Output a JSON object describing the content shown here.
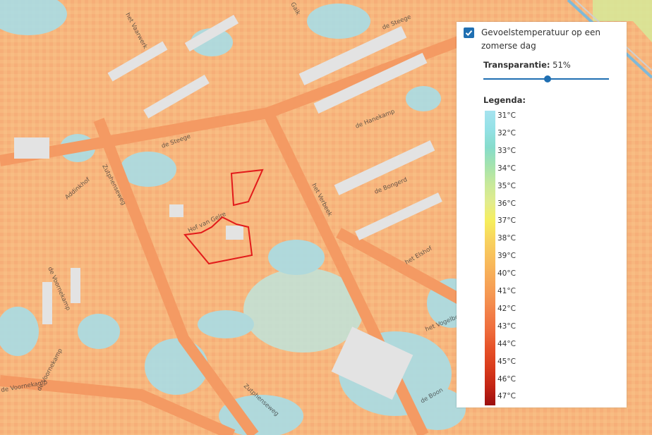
{
  "map": {
    "streets": [
      "het Vaarwerk",
      "Gaik",
      "de Steege",
      "de Steege",
      "de Hanekamp",
      "Zutphenseweg",
      "Addinkhof",
      "het Verbeek",
      "de Bongerd",
      "Hof van Gelre",
      "het Elshof",
      "de Voornekamp",
      "het Vogelbosch",
      "de Voornekamp",
      "de Voornekamp",
      "Zutphenseweg",
      "de Boon"
    ]
  },
  "panel": {
    "layer_title": "Gevoelstemperatuur op een zomerse dag",
    "checked": true,
    "transparency_label": "Transparantie:",
    "transparency_value": "51%",
    "transparency_fraction": 0.51,
    "legend_title": "Legenda:",
    "legend": [
      {
        "label": "31°C",
        "color": "#a6e3ef"
      },
      {
        "label": "32°C",
        "color": "#94e1e6"
      },
      {
        "label": "33°C",
        "color": "#86dccb"
      },
      {
        "label": "34°C",
        "color": "#a5e3ad"
      },
      {
        "label": "35°C",
        "color": "#c8e99a"
      },
      {
        "label": "36°C",
        "color": "#e2ec8c"
      },
      {
        "label": "37°C",
        "color": "#f6ee5c"
      },
      {
        "label": "38°C",
        "color": "#f8d35e"
      },
      {
        "label": "39°C",
        "color": "#f8bf5c"
      },
      {
        "label": "40°C",
        "color": "#f7ab58"
      },
      {
        "label": "41°C",
        "color": "#f59752"
      },
      {
        "label": "42°C",
        "color": "#f27f48"
      },
      {
        "label": "43°C",
        "color": "#ee6a3a"
      },
      {
        "label": "44°C",
        "color": "#e54f26"
      },
      {
        "label": "45°C",
        "color": "#d83a1b"
      },
      {
        "label": "46°C",
        "color": "#c22414"
      },
      {
        "label": "47°C",
        "color": "#9b0f0f"
      }
    ]
  }
}
